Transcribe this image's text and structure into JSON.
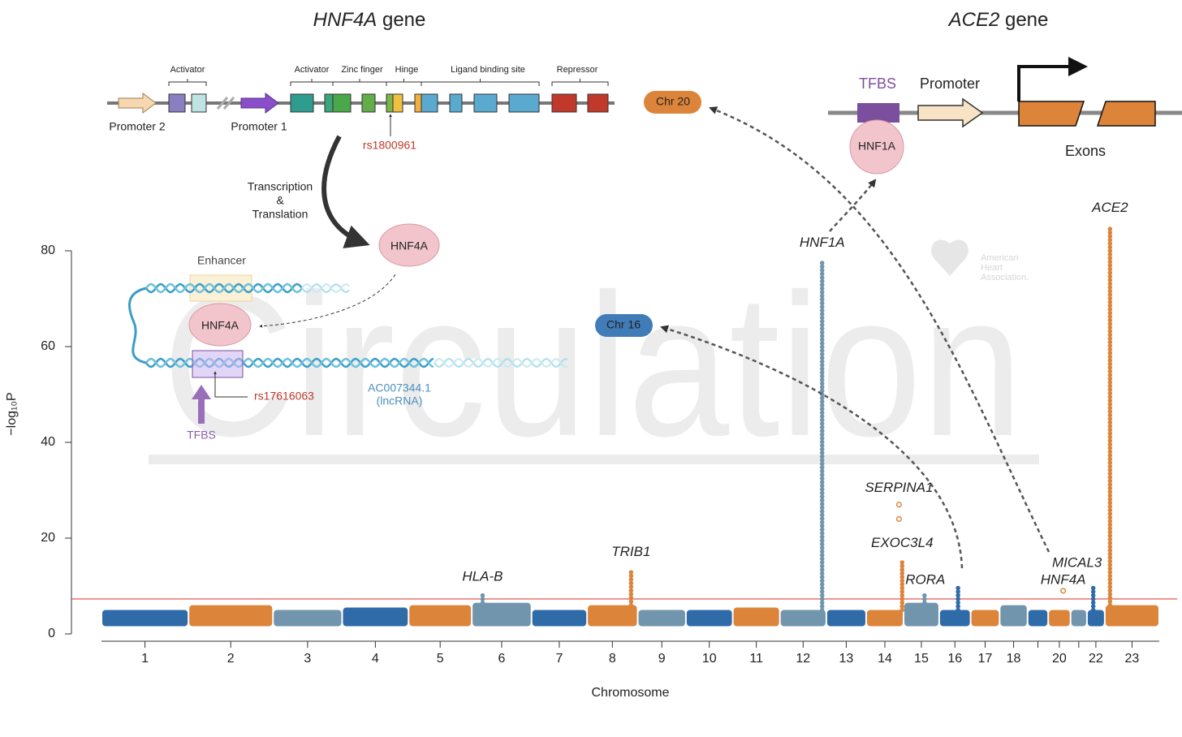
{
  "chart_data": {
    "type": "manhattan",
    "ylabel": "−log₁₀P",
    "xlabel": "Chromosome",
    "ylim": [
      0,
      80
    ],
    "yticks": [
      0,
      20,
      40,
      60,
      80
    ],
    "categories": [
      "1",
      "2",
      "3",
      "4",
      "5",
      "6",
      "7",
      "8",
      "9",
      "10",
      "11",
      "12",
      "13",
      "14",
      "15",
      "16",
      "17",
      "18",
      null,
      "20",
      null,
      "22",
      "23"
    ],
    "chromosome_lengths": [
      249,
      242,
      198,
      190,
      181,
      171,
      159,
      145,
      138,
      134,
      135,
      133,
      114,
      107,
      102,
      90,
      83,
      80,
      59,
      64,
      47,
      51,
      156
    ],
    "background": [
      5,
      6,
      5,
      5.5,
      6,
      6.5,
      5,
      6,
      5,
      5,
      5.5,
      5,
      5,
      5,
      6.5,
      5,
      5,
      6,
      5,
      5,
      5,
      5,
      6
    ],
    "colors": [
      "#2f6ba8",
      "#dc843a",
      "#7195ad"
    ],
    "threshold": 7.3,
    "threshold_color": "#e0463c",
    "hits": [
      {
        "chromosome": 6,
        "position": 31,
        "values": [
          8.5
        ],
        "name": "HLA-B"
      },
      {
        "chromosome": 8,
        "position": 126,
        "values": [
          13.5
        ],
        "name": "TRIB1"
      },
      {
        "chromosome": 12,
        "position": 121,
        "values": [
          77.5
        ],
        "name": "HNF1A"
      },
      {
        "chromosome": 14,
        "position": 94,
        "values": [
          27,
          24
        ],
        "open": true,
        "name": "SERPINA1"
      },
      {
        "chromosome": 14,
        "position": 103,
        "values": [
          15.5
        ],
        "name": "EXOC3L4"
      },
      {
        "chromosome": 15,
        "position": 60,
        "values": [
          8.5
        ],
        "name": "RORA"
      },
      {
        "chromosome": 16,
        "position": 54,
        "values": [
          10
        ]
      },
      {
        "chromosome": 20,
        "position": 43,
        "values": [
          9
        ],
        "open": true,
        "name": "HNF4A"
      },
      {
        "chromosome": 22,
        "position": 18,
        "values": [
          10
        ],
        "name": "MICAL3"
      },
      {
        "chromosome": 23,
        "position": 15,
        "values": [
          85
        ],
        "name": "ACE2"
      }
    ]
  },
  "figure": {
    "hnf4a_title": {
      "gene": "HNF4A",
      "word": "gene"
    },
    "ace2_title": {
      "gene": "ACE2",
      "word": "gene"
    },
    "domains": [
      "Activator",
      "Activator",
      "Zinc finger",
      "Hinge",
      "Ligand binding site",
      "Repressor"
    ],
    "promoters": [
      "Promoter 2",
      "Promoter 1"
    ],
    "snp_coding": "rs1800961",
    "process": [
      "Transcription",
      "&",
      "Translation"
    ],
    "protein": "HNF4A",
    "enhancer": "Enhancer",
    "snp_enhancer": "rs17616063",
    "tfbs": "TFBS",
    "lncrna": [
      "AC007344.1",
      "(lncRNA)"
    ],
    "chr20": "Chr 20",
    "chr16": "Chr 16",
    "promoter": "Promoter",
    "tf": "HNF1A",
    "exons": "Exons"
  },
  "watermark": {
    "journal": "Circulation",
    "society": [
      "American",
      "Heart",
      "Association."
    ]
  }
}
